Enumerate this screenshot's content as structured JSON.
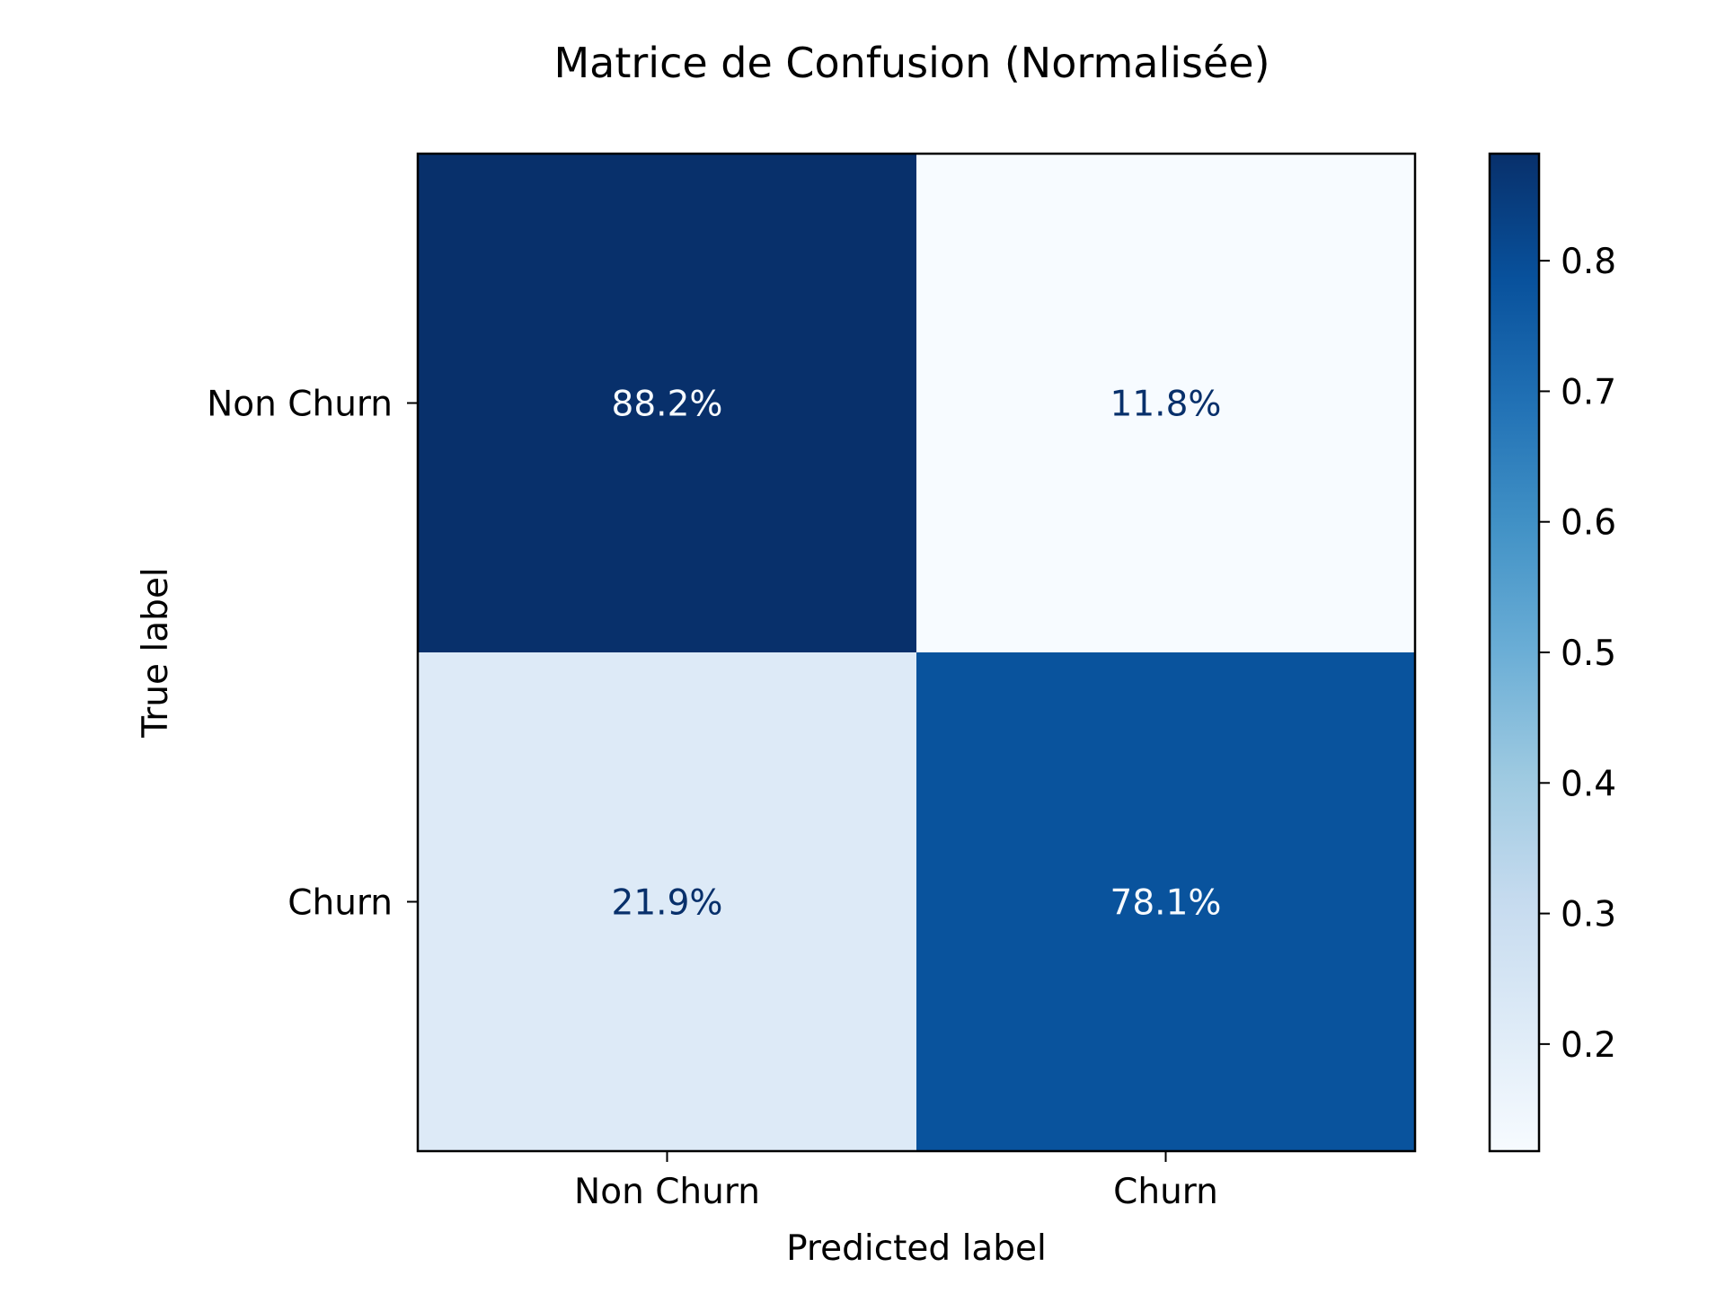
{
  "chart_data": {
    "type": "heatmap",
    "title": "Matrice de Confusion (Normalisée)",
    "xlabel": "Predicted label",
    "ylabel": "True label",
    "x_categories": [
      "Non Churn",
      "Churn"
    ],
    "y_categories": [
      "Non Churn",
      "Churn"
    ],
    "values": [
      [
        0.882,
        0.118
      ],
      [
        0.219,
        0.781
      ]
    ],
    "cell_labels": [
      [
        "88.2%",
        "11.8%"
      ],
      [
        "21.9%",
        "78.1%"
      ]
    ],
    "colormap": "Blues",
    "colorbar": {
      "range": [
        0.118,
        0.882
      ],
      "ticks": [
        0.2,
        0.3,
        0.4,
        0.5,
        0.6,
        0.7,
        0.8
      ],
      "tick_labels": [
        "0.2",
        "0.3",
        "0.4",
        "0.5",
        "0.6",
        "0.7",
        "0.8"
      ]
    },
    "grid": false
  }
}
